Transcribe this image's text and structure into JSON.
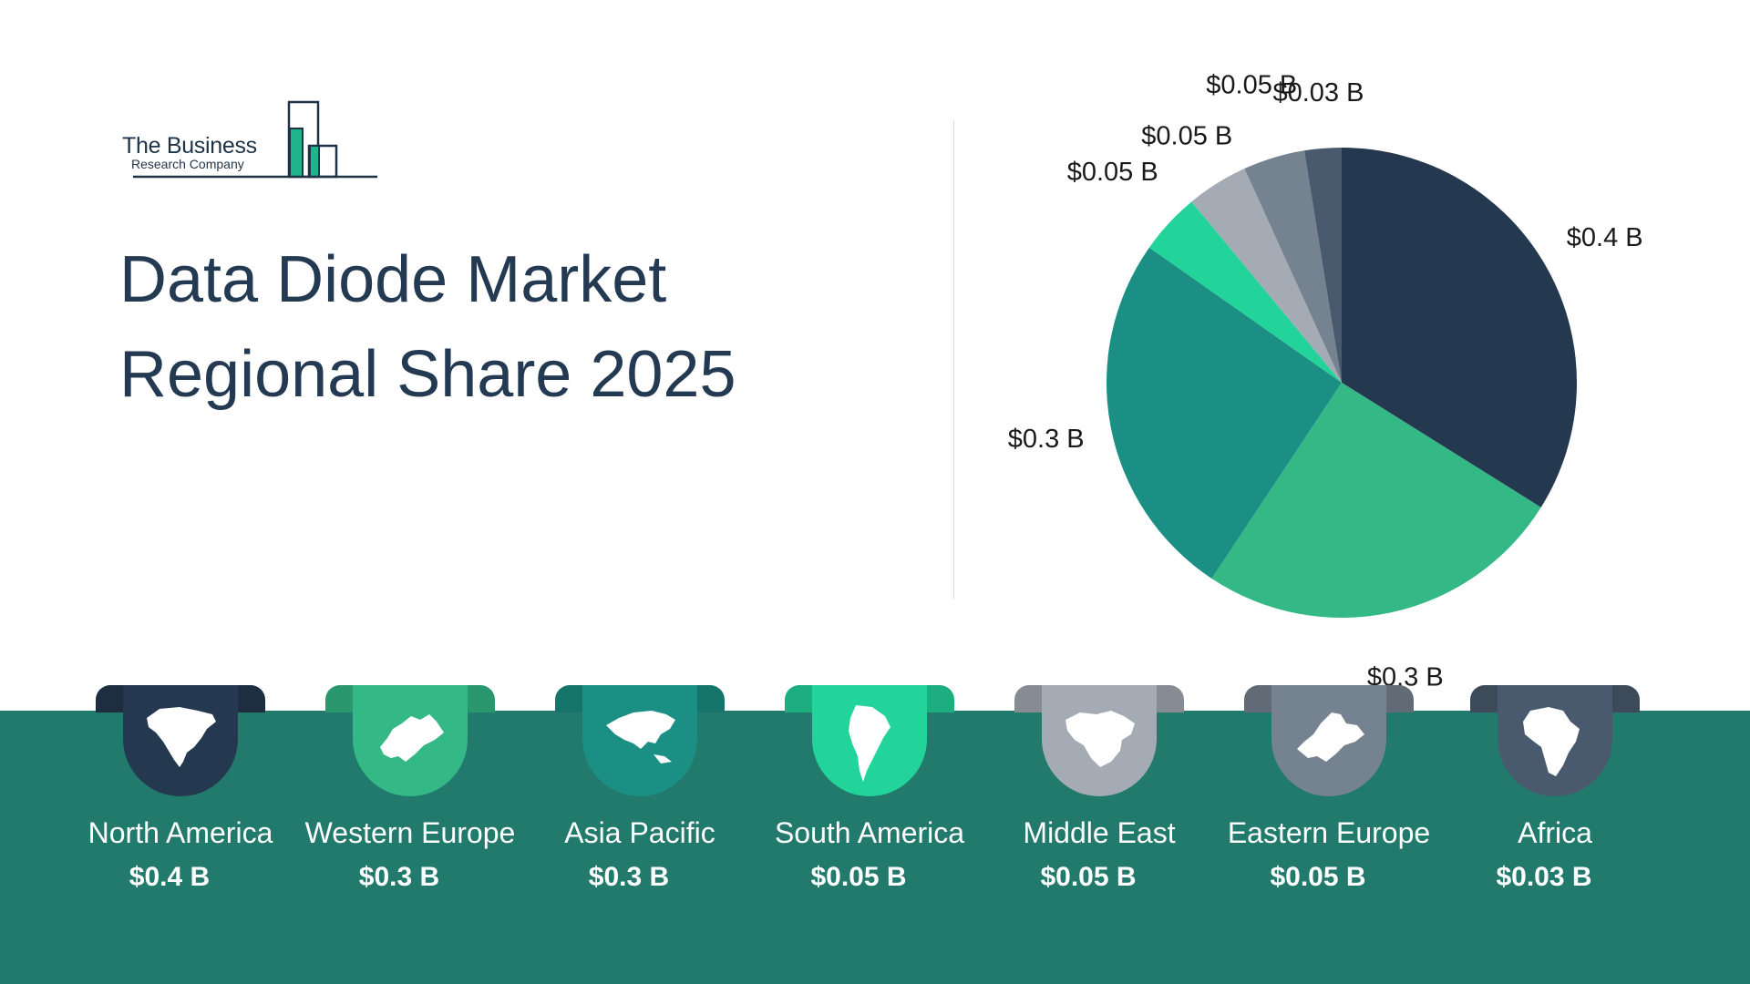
{
  "logo": {
    "line1": "The Business",
    "line2": "Research Company"
  },
  "title": {
    "line1": "Data Diode Market",
    "line2": "Regional Share 2025"
  },
  "chart_data": {
    "type": "pie",
    "title": "Data Diode Market Regional Share 2025",
    "unit": "$ B",
    "slices": [
      {
        "name": "North America",
        "value": 0.4,
        "label": "$0.4 B",
        "color": "#24384f"
      },
      {
        "name": "Western Europe",
        "value": 0.3,
        "label": "$0.3 B",
        "color": "#34b886"
      },
      {
        "name": "Asia Pacific",
        "value": 0.3,
        "label": "$0.3 B",
        "color": "#1b8f83"
      },
      {
        "name": "South America",
        "value": 0.05,
        "label": "$0.05 B",
        "color": "#22d49a"
      },
      {
        "name": "Middle East",
        "value": 0.05,
        "label": "$0.05 B",
        "color": "#a5abb5"
      },
      {
        "name": "Eastern Europe",
        "value": 0.05,
        "label": "$0.05 B",
        "color": "#75828f"
      },
      {
        "name": "Africa",
        "value": 0.03,
        "label": "$0.03 B",
        "color": "#4a5a6e"
      }
    ]
  },
  "regions": [
    {
      "name": "North America",
      "value": "$0.4 B",
      "icon": "north-america-map-icon",
      "color": "#24384f"
    },
    {
      "name": "Western Europe",
      "value": "$0.3 B",
      "icon": "western-europe-map-icon",
      "color": "#34b886"
    },
    {
      "name": "Asia Pacific",
      "value": "$0.3 B",
      "icon": "asia-pacific-map-icon",
      "color": "#1b8f83"
    },
    {
      "name": "South America",
      "value": "$0.05 B",
      "icon": "south-america-map-icon",
      "color": "#22d49a"
    },
    {
      "name": "Middle East",
      "value": "$0.05 B",
      "icon": "middle-east-map-icon",
      "color": "#a5abb5"
    },
    {
      "name": "Eastern Europe",
      "value": "$0.05 B",
      "icon": "eastern-europe-map-icon",
      "color": "#75828f"
    },
    {
      "name": "Africa",
      "value": "$0.03 B",
      "icon": "africa-map-icon",
      "color": "#4a5a6e"
    }
  ],
  "colors": {
    "band": "#217a6b",
    "title": "#243a52",
    "logo_accent": "#1fb58c"
  }
}
